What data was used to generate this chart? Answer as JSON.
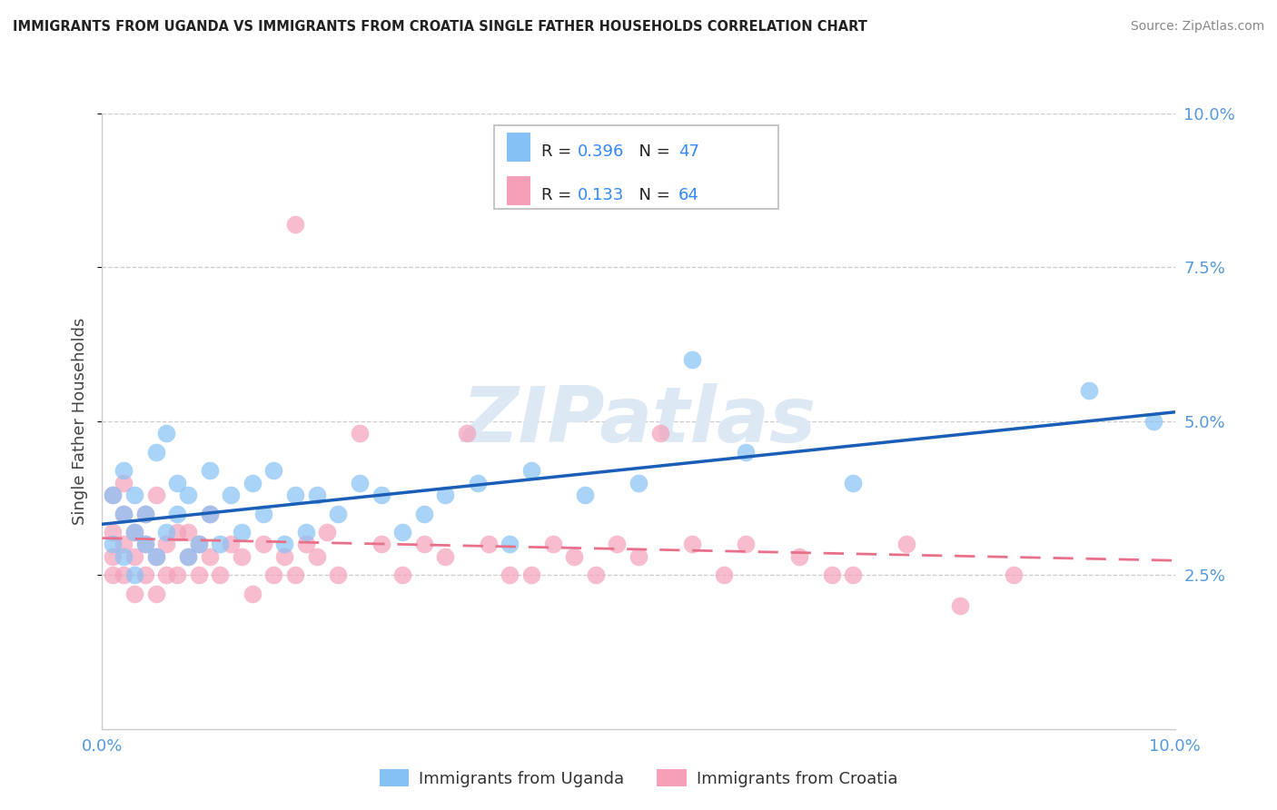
{
  "title": "IMMIGRANTS FROM UGANDA VS IMMIGRANTS FROM CROATIA SINGLE FATHER HOUSEHOLDS CORRELATION CHART",
  "source": "Source: ZipAtlas.com",
  "ylabel": "Single Father Households",
  "uganda_color": "#85c1f5",
  "croatia_color": "#f5a0b8",
  "uganda_line_color": "#1a5eb8",
  "croatia_line_color": "#e8708a",
  "watermark": "ZIPatlas",
  "watermark_color": "#dde8f5",
  "background_color": "#ffffff",
  "xlim": [
    0.0,
    0.1
  ],
  "ylim": [
    0.0,
    0.1
  ],
  "grid_color": "#cccccc",
  "axis_label_color": "#5599dd",
  "title_color": "#222222",
  "source_color": "#888888",
  "legend_R1": "0.396",
  "legend_N1": "47",
  "legend_R2": "0.133",
  "legend_N2": "64",
  "legend_num_color": "#3388ff",
  "legend_text_color": "#222222"
}
